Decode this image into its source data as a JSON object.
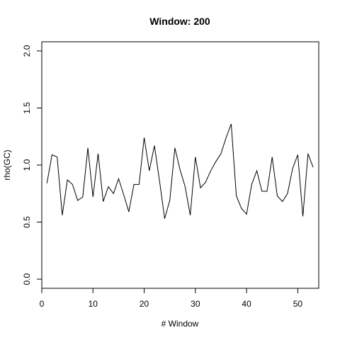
{
  "chart_data": {
    "type": "line",
    "title": "Window: 200",
    "xlabel": "# Window",
    "ylabel": "rho(GC)",
    "xlim": [
      0,
      54.1
    ],
    "ylim": [
      -0.08,
      2.08
    ],
    "xticks": [
      0,
      10,
      20,
      30,
      40,
      50
    ],
    "yticks": [
      0.0,
      0.5,
      1.0,
      1.5,
      2.0
    ],
    "xtick_labels": [
      "0",
      "10",
      "20",
      "30",
      "40",
      "50"
    ],
    "ytick_labels": [
      "0.0",
      "0.5",
      "1.0",
      "1.5",
      "2.0"
    ],
    "grid": false,
    "line_color": "#000000",
    "series": [
      {
        "x": [
          1,
          2,
          3,
          4,
          5,
          6,
          7,
          8,
          9,
          10,
          11,
          12,
          13,
          14,
          15,
          16,
          17,
          18,
          19,
          20,
          21,
          22,
          23,
          24,
          25,
          26,
          27,
          28,
          29,
          30,
          31,
          32,
          33,
          34,
          35,
          36,
          37,
          38,
          39,
          40,
          41,
          42,
          43,
          44,
          45,
          46,
          47,
          48,
          49,
          50,
          51,
          52,
          53
        ],
        "values": [
          0.84,
          1.09,
          1.07,
          0.56,
          0.87,
          0.83,
          0.69,
          0.72,
          1.15,
          0.72,
          1.1,
          0.68,
          0.81,
          0.75,
          0.88,
          0.74,
          0.59,
          0.83,
          0.83,
          1.24,
          0.95,
          1.17,
          0.86,
          0.53,
          0.69,
          1.15,
          0.96,
          0.81,
          0.56,
          1.07,
          0.8,
          0.85,
          0.95,
          1.03,
          1.1,
          1.24,
          1.36,
          0.73,
          0.62,
          0.57,
          0.83,
          0.95,
          0.77,
          0.77,
          1.07,
          0.73,
          0.68,
          0.75,
          0.97,
          1.09,
          0.55,
          1.1,
          0.98
        ]
      }
    ]
  }
}
